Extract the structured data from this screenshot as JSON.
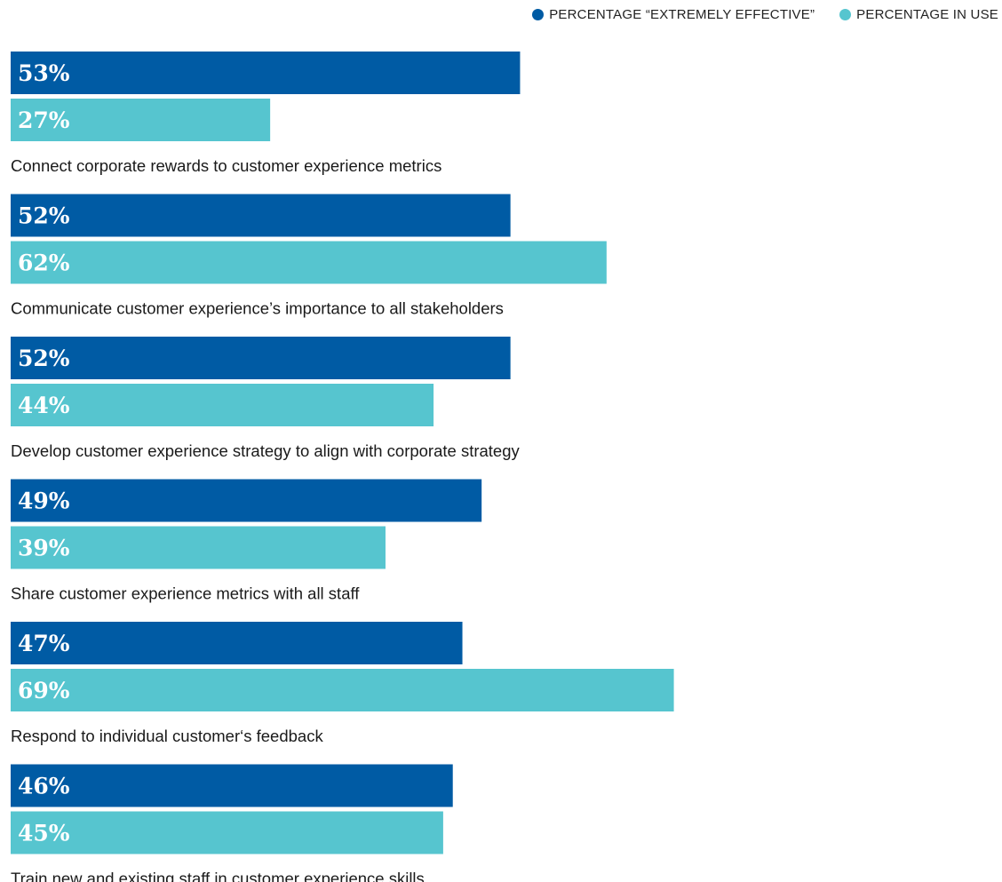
{
  "legend": {
    "extremely_effective": "PERCENTAGE “EXTREMELY EFFECTIVE”",
    "in_use": "PERCENTAGE IN USE"
  },
  "colors": {
    "extremely_effective": "#005ba4",
    "in_use": "#56c5cf",
    "label_text": "#ffffff",
    "category_text": "#1a1a1a"
  },
  "chart_data": {
    "type": "bar",
    "orientation": "horizontal",
    "categories": [
      "Connect corporate rewards to customer experience metrics",
      "Communicate customer experience’s importance to all stakeholders",
      "Develop customer experience strategy to align with corporate strategy",
      "Share customer experience metrics with all staff",
      "Respond to individual customer‘s feedback",
      "Train new and existing staff in customer experience skills"
    ],
    "series": [
      {
        "name": "PERCENTAGE “EXTREMELY EFFECTIVE”",
        "values": [
          53,
          52,
          52,
          49,
          47,
          46
        ]
      },
      {
        "name": "PERCENTAGE IN USE",
        "values": [
          27,
          62,
          44,
          39,
          69,
          45
        ]
      }
    ],
    "value_labels": [
      [
        "53%",
        "52%",
        "52%",
        "49%",
        "47%",
        "46%"
      ],
      [
        "27%",
        "62%",
        "44%",
        "39%",
        "69%",
        "45%"
      ]
    ],
    "legend_position": "top-right",
    "grid": false
  }
}
